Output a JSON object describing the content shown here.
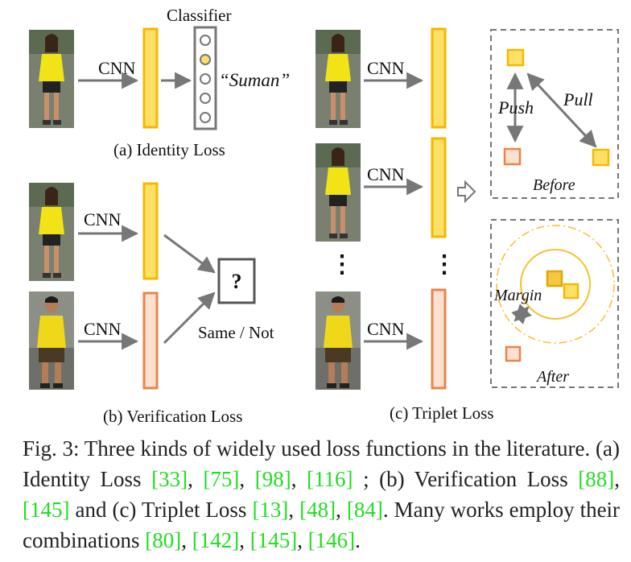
{
  "diagram": {
    "cnn_label": "CNN",
    "classifier_label": "Classifier",
    "identity_output": "“Suman”",
    "identity_title": "(a) Identity Loss",
    "verification_question": "?",
    "verification_output": "Same / Not",
    "verification_title": "(b) Verification Loss",
    "triplet_title": "(c) Triplet Loss",
    "vdots": "⋮",
    "push_label": "Push",
    "pull_label": "Pull",
    "before_label": "Before",
    "margin_label": "Margin",
    "after_label": "After"
  },
  "caption": {
    "prefix": "Fig. 3: Three kinds of widely used loss functions in the literature. (a) Identity Loss ",
    "identity_refs": [
      "[33]",
      "[75]",
      "[98]",
      "[116]"
    ],
    "verification_text": "; (b) Verification Loss ",
    "verification_refs": [
      "[88]",
      "[145]"
    ],
    "triplet_text": "and (c) Triplet Loss ",
    "triplet_refs": [
      "[13]",
      "[48]",
      "[84]"
    ],
    "combo_text": ". Many works employ their combinations ",
    "combo_refs": [
      "[80]",
      "[142]",
      "[145]",
      "[146]"
    ],
    "end": "."
  },
  "colors": {
    "anchor_fill": "#FFE066",
    "anchor_stroke": "#F5B800",
    "negative_fill": "#FCE0D0",
    "negative_stroke": "#E8854A",
    "arrow": "#777777",
    "dashed_border": "#777777",
    "ref_green": "#22DD22"
  }
}
